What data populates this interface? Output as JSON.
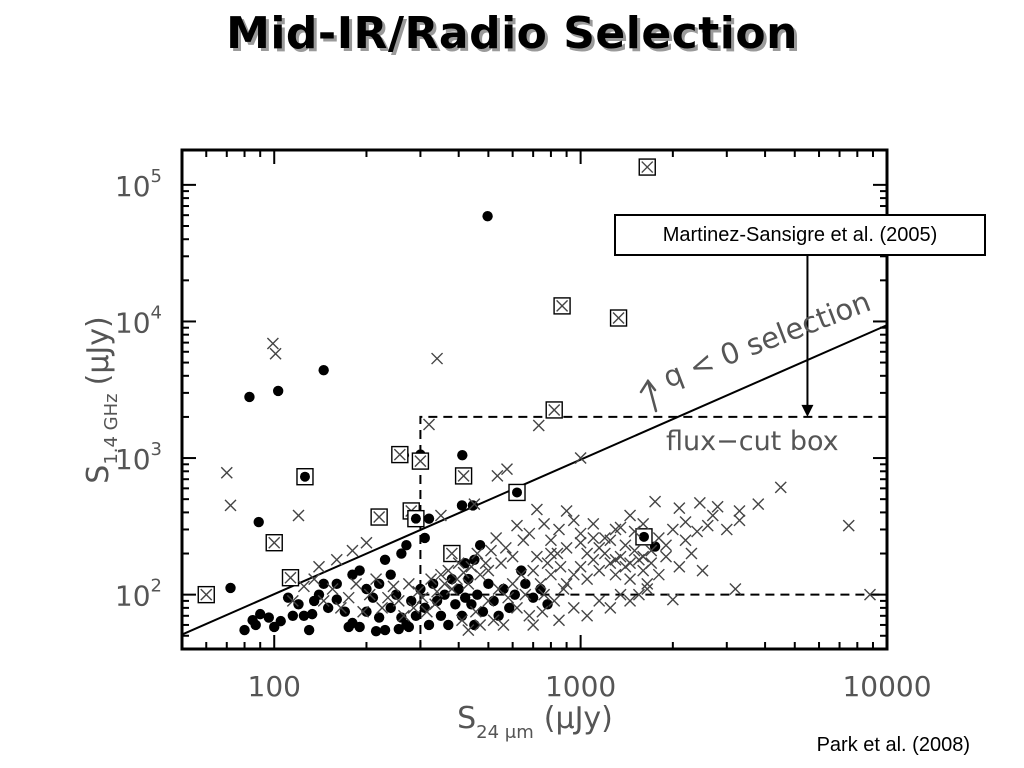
{
  "slide": {
    "title": "Mid-IR/Radio Selection",
    "credit": "Park et al. (2008)"
  },
  "chart_data": {
    "type": "scatter",
    "x_scale": "log",
    "y_scale": "log",
    "xlim": [
      50,
      10000
    ],
    "ylim": [
      40,
      180000
    ],
    "xticks": [
      {
        "value": 100,
        "label": "100"
      },
      {
        "value": 1000,
        "label": "1000"
      },
      {
        "value": 10000,
        "label": "10000"
      }
    ],
    "yticks": [
      {
        "value": 100,
        "base": "10",
        "exp": "2"
      },
      {
        "value": 1000,
        "base": "10",
        "exp": "3"
      },
      {
        "value": 10000,
        "base": "10",
        "exp": "4"
      },
      {
        "value": 100000,
        "base": "10",
        "exp": "5"
      }
    ],
    "xlabel": {
      "main": "S",
      "sub": "24 μm",
      "unit": "(μJy)"
    },
    "ylabel": {
      "main": "S",
      "sub": "1.4 GHz",
      "unit": "(μJy)"
    },
    "line": {
      "x": [
        50,
        10000
      ],
      "y": [
        51,
        9400
      ]
    },
    "annotations": {
      "line_label": "q < 0 selection",
      "box_label": "flux−cut box",
      "callout": "Martinez-Sansigre et al. (2005)"
    },
    "box": {
      "x_min": 300,
      "y_min": 100,
      "y_max": 2000
    },
    "callout_target": {
      "x": 5500,
      "y": 2000
    },
    "series": [
      {
        "marker": "filled-circle",
        "points": [
          [
            497,
            59000
          ],
          [
            145,
            4400
          ],
          [
            103,
            3100
          ],
          [
            83,
            2800
          ],
          [
            411,
            1050
          ],
          [
            265,
            1050
          ],
          [
            300,
            1060
          ],
          [
            89,
            340
          ],
          [
            72,
            112
          ],
          [
            111,
            95
          ],
          [
            145,
            120
          ],
          [
            190,
            150
          ],
          [
            230,
            180
          ],
          [
            270,
            230
          ],
          [
            310,
            260
          ],
          [
            320,
            360
          ],
          [
            385,
            200
          ],
          [
            410,
            450
          ],
          [
            445,
            450
          ],
          [
            450,
            180
          ],
          [
            470,
            230
          ],
          [
            420,
            170
          ],
          [
            260,
            200
          ],
          [
            240,
            140
          ],
          [
            200,
            110
          ],
          [
            150,
            80
          ],
          [
            125,
            70
          ],
          [
            96,
            68
          ],
          [
            87,
            60
          ],
          [
            80,
            55
          ],
          [
            90,
            72
          ],
          [
            105,
            64
          ],
          [
            115,
            70
          ],
          [
            133,
            72
          ],
          [
            135,
            90
          ],
          [
            160,
            92
          ],
          [
            170,
            75
          ],
          [
            180,
            62
          ],
          [
            190,
            58
          ],
          [
            200,
            75
          ],
          [
            210,
            95
          ],
          [
            220,
            68
          ],
          [
            230,
            55
          ],
          [
            240,
            80
          ],
          [
            250,
            100
          ],
          [
            260,
            68
          ],
          [
            270,
            60
          ],
          [
            280,
            90
          ],
          [
            290,
            70
          ],
          [
            300,
            110
          ],
          [
            310,
            80
          ],
          [
            320,
            60
          ],
          [
            330,
            120
          ],
          [
            340,
            90
          ],
          [
            350,
            70
          ],
          [
            360,
            100
          ],
          [
            370,
            60
          ],
          [
            380,
            130
          ],
          [
            390,
            85
          ],
          [
            400,
            110
          ],
          [
            410,
            70
          ],
          [
            420,
            95
          ],
          [
            430,
            130
          ],
          [
            440,
            85
          ],
          [
            450,
            60
          ],
          [
            460,
            100
          ],
          [
            480,
            75
          ],
          [
            500,
            120
          ],
          [
            520,
            90
          ],
          [
            540,
            70
          ],
          [
            560,
            110
          ],
          [
            585,
            80
          ],
          [
            610,
            100
          ],
          [
            640,
            150
          ],
          [
            660,
            120
          ],
          [
            700,
            95
          ],
          [
            740,
            110
          ],
          [
            780,
            85
          ],
          [
            220,
            120
          ],
          [
            180,
            140
          ],
          [
            160,
            120
          ],
          [
            140,
            100
          ],
          [
            120,
            85
          ],
          [
            100,
            58
          ],
          [
            85,
            65
          ],
          [
            130,
            55
          ],
          [
            175,
            58
          ],
          [
            215,
            54
          ],
          [
            255,
            56
          ],
          [
            275,
            58
          ],
          [
            1750,
            225
          ]
        ]
      },
      {
        "marker": "boxed-x",
        "points": [
          [
            1650,
            135000
          ],
          [
            870,
            13000
          ],
          [
            1330,
            10600
          ],
          [
            820,
            2250
          ],
          [
            257,
            1060
          ],
          [
            300,
            950
          ],
          [
            415,
            740
          ],
          [
            220,
            370
          ],
          [
            280,
            410
          ],
          [
            100,
            240
          ],
          [
            113,
            133
          ],
          [
            60,
            100
          ],
          [
            380,
            200
          ]
        ]
      },
      {
        "marker": "boxed-dot",
        "points": [
          [
            126,
            730
          ],
          [
            290,
            360
          ],
          [
            620,
            560
          ],
          [
            1610,
            265
          ]
        ]
      },
      {
        "marker": "x",
        "points": [
          [
            99,
            6900
          ],
          [
            101,
            5800
          ],
          [
            340,
            5350
          ],
          [
            70,
            780
          ],
          [
            320,
            1760
          ],
          [
            730,
            1730
          ],
          [
            1000,
            1000
          ],
          [
            575,
            830
          ],
          [
            535,
            740
          ],
          [
            450,
            460
          ],
          [
            120,
            380
          ],
          [
            72,
            450
          ],
          [
            350,
            380
          ],
          [
            1750,
            480
          ],
          [
            2100,
            430
          ],
          [
            2450,
            470
          ],
          [
            2800,
            440
          ],
          [
            3300,
            410
          ],
          [
            3800,
            460
          ],
          [
            4500,
            610
          ],
          [
            7500,
            320
          ],
          [
            3200,
            110
          ],
          [
            2000,
            92
          ],
          [
            8800,
            100
          ],
          [
            3300,
            350
          ],
          [
            3000,
            300
          ],
          [
            2700,
            380
          ],
          [
            2400,
            290
          ],
          [
            2200,
            340
          ],
          [
            2000,
            300
          ],
          [
            1800,
            260
          ],
          [
            1600,
            330
          ],
          [
            1450,
            380
          ],
          [
            1300,
            300
          ],
          [
            1200,
            260
          ],
          [
            1100,
            330
          ],
          [
            1000,
            280
          ],
          [
            950,
            350
          ],
          [
            900,
            410
          ],
          [
            850,
            300
          ],
          [
            800,
            250
          ],
          [
            760,
            330
          ],
          [
            720,
            420
          ],
          [
            680,
            280
          ],
          [
            650,
            250
          ],
          [
            620,
            320
          ],
          [
            600,
            190
          ],
          [
            570,
            220
          ],
          [
            550,
            170
          ],
          [
            530,
            260
          ],
          [
            510,
            210
          ],
          [
            500,
            150
          ],
          [
            490,
            170
          ],
          [
            470,
            140
          ],
          [
            460,
            200
          ],
          [
            440,
            160
          ],
          [
            430,
            120
          ],
          [
            415,
            145
          ],
          [
            400,
            170
          ],
          [
            395,
            130
          ],
          [
            380,
            110
          ],
          [
            370,
            150
          ],
          [
            360,
            120
          ],
          [
            350,
            140
          ],
          [
            340,
            105
          ],
          [
            335,
            85
          ],
          [
            325,
            130
          ],
          [
            315,
            75
          ],
          [
            305,
            95
          ],
          [
            295,
            105
          ],
          [
            285,
            80
          ],
          [
            275,
            120
          ],
          [
            265,
            70
          ],
          [
            255,
            90
          ],
          [
            245,
            115
          ],
          [
            235,
            95
          ],
          [
            225,
            80
          ],
          [
            215,
            130
          ],
          [
            205,
            100
          ],
          [
            195,
            75
          ],
          [
            185,
            120
          ],
          [
            175,
            95
          ],
          [
            165,
            80
          ],
          [
            155,
            110
          ],
          [
            145,
            90
          ],
          [
            135,
            130
          ],
          [
            125,
            115
          ],
          [
            115,
            90
          ],
          [
            140,
            160
          ],
          [
            160,
            180
          ],
          [
            180,
            210
          ],
          [
            200,
            240
          ],
          [
            900,
            120
          ],
          [
            950,
            140
          ],
          [
            1000,
            160
          ],
          [
            1050,
            130
          ],
          [
            1100,
            180
          ],
          [
            1150,
            150
          ],
          [
            1200,
            200
          ],
          [
            1250,
            170
          ],
          [
            1300,
            140
          ],
          [
            1350,
            190
          ],
          [
            1400,
            160
          ],
          [
            1450,
            130
          ],
          [
            1500,
            210
          ],
          [
            1550,
            180
          ],
          [
            1600,
            150
          ],
          [
            1650,
            120
          ],
          [
            1700,
            170
          ],
          [
            1800,
            140
          ],
          [
            1900,
            190
          ],
          [
            2100,
            160
          ],
          [
            2300,
            200
          ],
          [
            2500,
            150
          ],
          [
            700,
            150
          ],
          [
            720,
            190
          ],
          [
            740,
            120
          ],
          [
            760,
            100
          ],
          [
            780,
            170
          ],
          [
            800,
            140
          ],
          [
            820,
            90
          ],
          [
            840,
            200
          ],
          [
            860,
            160
          ],
          [
            880,
            110
          ],
          [
            600,
            120
          ],
          [
            620,
            80
          ],
          [
            640,
            140
          ],
          [
            660,
            100
          ],
          [
            680,
            70
          ],
          [
            700,
            60
          ],
          [
            750,
            75
          ],
          [
            850,
            65
          ],
          [
            950,
            80
          ],
          [
            1050,
            70
          ],
          [
            1150,
            90
          ],
          [
            1250,
            80
          ],
          [
            1350,
            100
          ],
          [
            1450,
            90
          ],
          [
            1550,
            100
          ],
          [
            1650,
            110
          ],
          [
            560,
            60
          ],
          [
            580,
            95
          ],
          [
            500,
            90
          ],
          [
            520,
            65
          ],
          [
            540,
            110
          ],
          [
            470,
            60
          ],
          [
            455,
            75
          ],
          [
            430,
            55
          ],
          [
            410,
            65
          ],
          [
            900,
            220
          ],
          [
            1000,
            240
          ],
          [
            1100,
            260
          ],
          [
            1250,
            250
          ],
          [
            1400,
            230
          ],
          [
            1700,
            210
          ],
          [
            1900,
            230
          ],
          [
            2200,
            250
          ],
          [
            2600,
            320
          ],
          [
            1500,
            290
          ],
          [
            1350,
            310
          ],
          [
            800,
            200
          ],
          [
            1050,
            200
          ],
          [
            1150,
            220
          ],
          [
            1300,
            180
          ],
          [
            1450,
            170
          ],
          [
            1600,
            190
          ]
        ]
      }
    ]
  }
}
